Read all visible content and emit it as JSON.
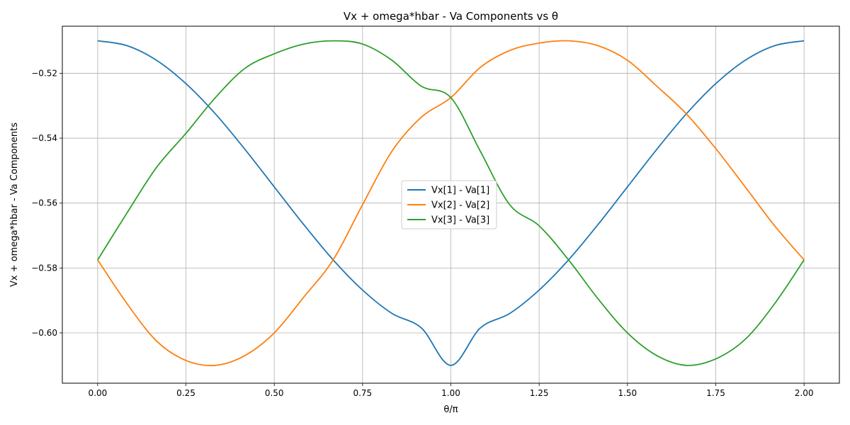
{
  "chart_data": {
    "type": "line",
    "title": "Vx + omega*hbar - Va Components vs θ",
    "xlabel": "θ/π",
    "ylabel": "Vx + omega*hbar - Va Components",
    "xlim": [
      -0.1,
      2.1
    ],
    "ylim": [
      -0.6155,
      -0.5055
    ],
    "xticks": [
      0.0,
      0.25,
      0.5,
      0.75,
      1.0,
      1.25,
      1.5,
      1.75,
      2.0
    ],
    "xtick_labels": [
      "0.00",
      "0.25",
      "0.50",
      "0.75",
      "1.00",
      "1.25",
      "1.50",
      "1.75",
      "2.00"
    ],
    "yticks": [
      -0.6,
      -0.58,
      -0.56,
      -0.54,
      -0.52
    ],
    "ytick_labels": [
      "−0.60",
      "−0.58",
      "−0.56",
      "−0.54",
      "−0.52"
    ],
    "grid": true,
    "legend_position": "center",
    "x": [
      0.0,
      0.0833,
      0.1667,
      0.25,
      0.3333,
      0.4167,
      0.5,
      0.5833,
      0.6667,
      0.75,
      0.8333,
      0.9167,
      1.0,
      1.0833,
      1.1667,
      1.25,
      1.3333,
      1.4167,
      1.5,
      1.5833,
      1.6667,
      1.75,
      1.8333,
      1.9167,
      2.0
    ],
    "series": [
      {
        "name": "Vx[1] - Va[1]",
        "color": "#1f77b4",
        "values": [
          -0.51,
          -0.5115,
          -0.516,
          -0.5232,
          -0.5325,
          -0.5434,
          -0.555,
          -0.5666,
          -0.5775,
          -0.5868,
          -0.594,
          -0.5985,
          -0.61,
          -0.5985,
          -0.594,
          -0.5868,
          -0.5775,
          -0.5666,
          -0.555,
          -0.5434,
          -0.5325,
          -0.5232,
          -0.516,
          -0.5115,
          -0.51
        ]
      },
      {
        "name": "Vx[2] - Va[2]",
        "color": "#ff7f0e",
        "values": [
          -0.5775,
          -0.591,
          -0.6025,
          -0.6085,
          -0.61,
          -0.607,
          -0.6,
          -0.589,
          -0.5775,
          -0.5605,
          -0.544,
          -0.5335,
          -0.5275,
          -0.5182,
          -0.513,
          -0.5107,
          -0.51,
          -0.5115,
          -0.516,
          -0.524,
          -0.5325,
          -0.5432,
          -0.555,
          -0.567,
          -0.5775
        ]
      },
      {
        "name": "Vx[3] - Va[3]",
        "color": "#2ca02c",
        "values": [
          -0.5775,
          -0.563,
          -0.549,
          -0.5385,
          -0.5275,
          -0.5185,
          -0.514,
          -0.511,
          -0.51,
          -0.511,
          -0.516,
          -0.524,
          -0.5275,
          -0.544,
          -0.5605,
          -0.567,
          -0.5775,
          -0.5895,
          -0.6,
          -0.607,
          -0.61,
          -0.608,
          -0.602,
          -0.591,
          -0.5775
        ]
      }
    ]
  }
}
